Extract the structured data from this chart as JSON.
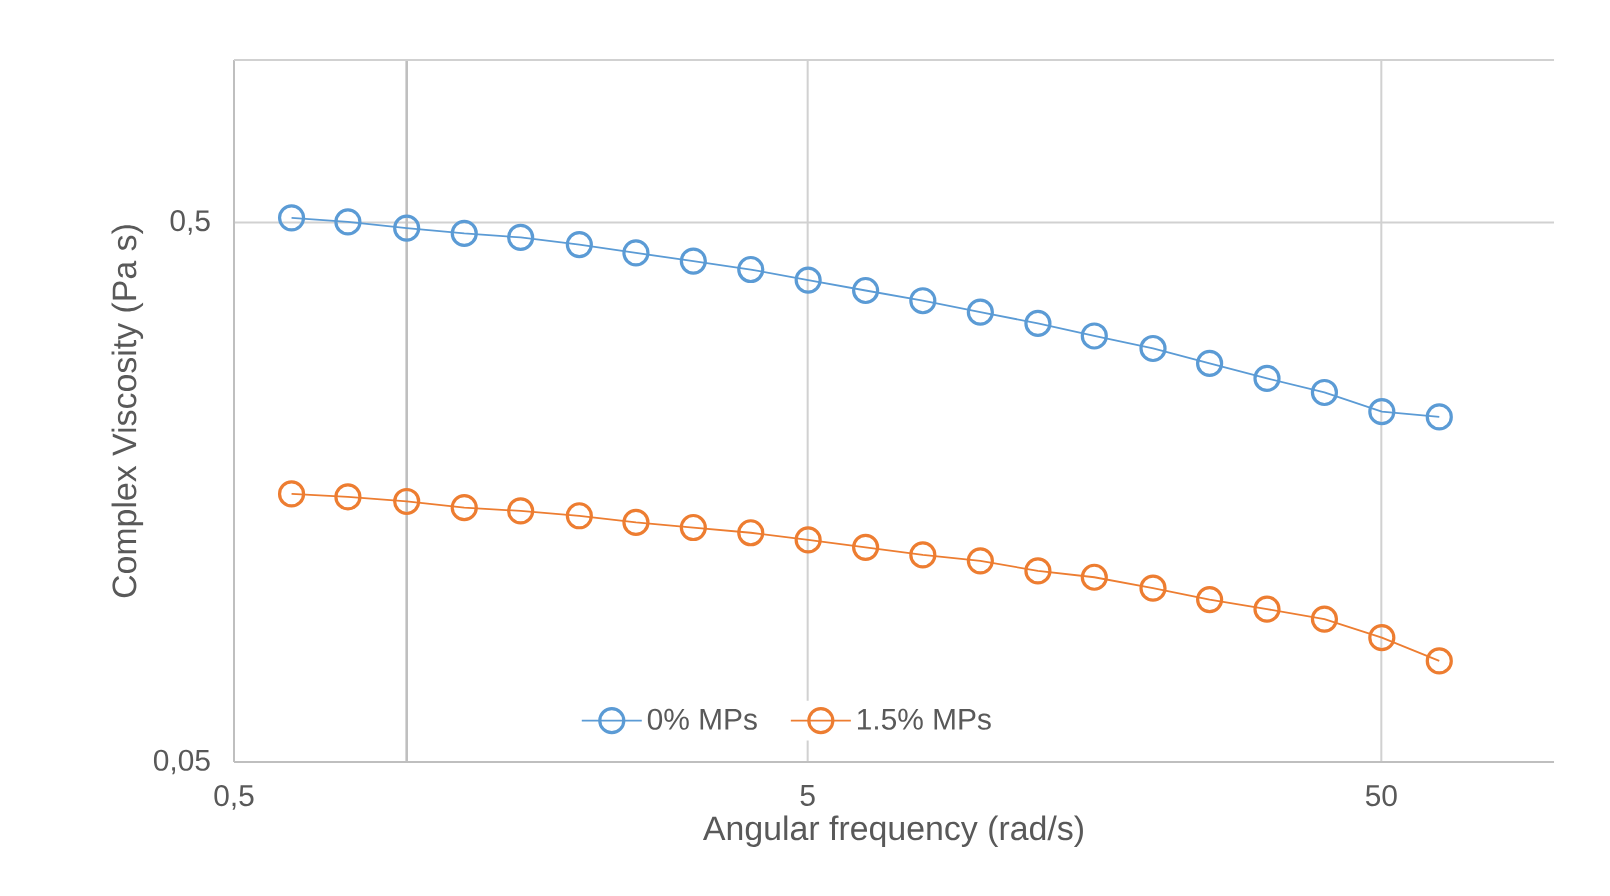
{
  "chart_data": {
    "type": "line",
    "xlabel": "Angular frequency (rad/s)",
    "ylabel": "Complex Viscosity (Pa s)",
    "x": [
      0.63,
      0.79,
      1.0,
      1.26,
      1.58,
      2.0,
      2.51,
      3.16,
      3.98,
      5.01,
      6.31,
      7.94,
      10.0,
      12.6,
      15.8,
      20.0,
      25.1,
      31.6,
      39.8,
      50.1,
      63.1
    ],
    "series": [
      {
        "name": "0% MPs",
        "color": "#5b9bd5",
        "values": [
          0.51,
          0.501,
          0.488,
          0.477,
          0.469,
          0.455,
          0.439,
          0.424,
          0.409,
          0.391,
          0.374,
          0.358,
          0.341,
          0.325,
          0.308,
          0.292,
          0.274,
          0.257,
          0.242,
          0.223,
          0.218
        ]
      },
      {
        "name": "1.5% MPs",
        "color": "#ed7d31",
        "values": [
          0.157,
          0.155,
          0.152,
          0.148,
          0.146,
          0.143,
          0.139,
          0.136,
          0.133,
          0.129,
          0.125,
          0.121,
          0.118,
          0.113,
          0.11,
          0.105,
          0.1,
          0.096,
          0.092,
          0.085,
          0.077
        ]
      }
    ],
    "log": "xy",
    "xlim": [
      0.5,
      100
    ],
    "ylim": [
      0.05,
      1
    ],
    "xticks": [
      {
        "value": 0.5,
        "label": "0,5"
      },
      5,
      50
    ],
    "yticks": [
      {
        "value": 0.05,
        "label": "0,05"
      },
      {
        "value": 0.5,
        "label": "0,5"
      }
    ],
    "ref_lines": [
      {
        "axis": "x",
        "value": 1,
        "color": "#bfbfbf"
      }
    ],
    "grid": true,
    "legend": "bottom",
    "marker": "circle",
    "line_style": "solid"
  }
}
